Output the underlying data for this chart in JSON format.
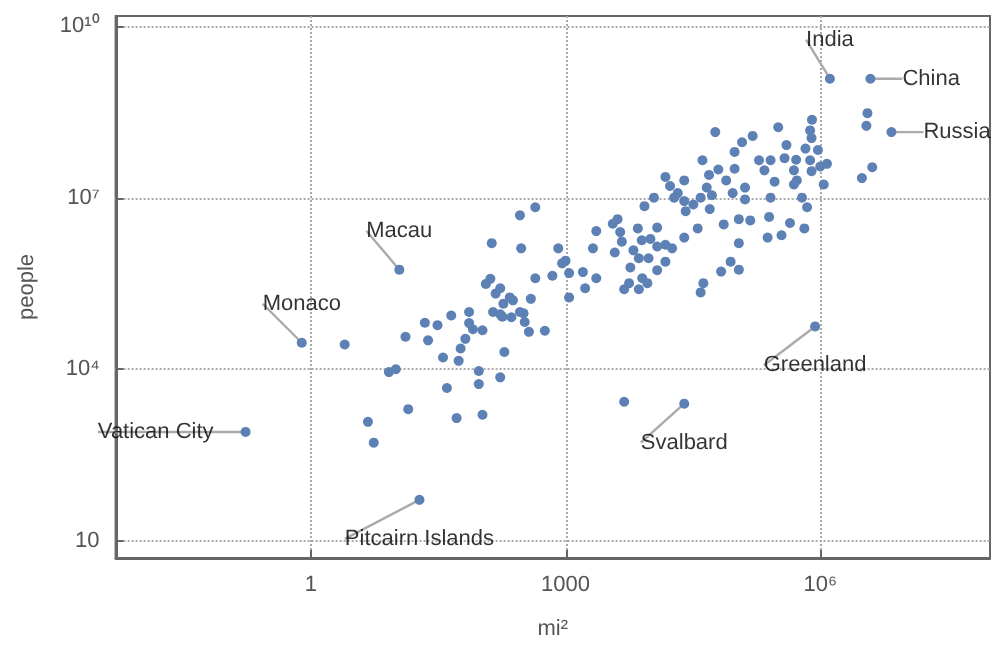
{
  "chart_data": {
    "type": "scatter",
    "xlabel": "mi²",
    "ylabel": "people",
    "log": "xy",
    "grid": true,
    "marker": "circle",
    "color": "#5e81b5",
    "xlim": [
      0.005,
      100000000
    ],
    "ylim": [
      5,
      15000000000
    ],
    "xticks": [
      1,
      1000,
      {
        "value": 1000000,
        "label": "10⁶"
      }
    ],
    "yticks": [
      10,
      {
        "value": 10000,
        "label": "10⁴"
      },
      {
        "value": 10000000,
        "label": "10⁷"
      },
      {
        "value": 10000000000,
        "label": "10¹⁰"
      }
    ],
    "x": [
      0.17,
      0.78,
      11,
      19,
      1300000,
      3900000,
      6900000,
      870000,
      25000,
      2.5,
      13,
      22,
      24,
      31,
      45,
      73,
      73,
      81,
      105,
      66,
      58,
      36,
      55,
      8.3,
      10,
      40,
      95,
      95,
      14,
      52,
      105,
      4.7,
      5.5,
      135,
      115,
      130,
      150,
      170,
      140,
      170,
      180,
      185,
      190,
      170,
      220,
      240,
      230,
      290,
      300,
      290,
      440,
      320,
      330,
      370,
      390,
      440,
      570,
      700,
      820,
      910,
      1000,
      1100,
      1100,
      1600,
      1700,
      2100,
      2300,
      2300,
      3600,
      4100,
      4400,
      4600,
      3800,
      4900,
      4900,
      58000,
      41000,
      7100,
      8500,
      12000,
      10000,
      7900,
      6300,
      7300,
      9500,
      12000,
      15000,
      18000,
      15000,
      12000,
      5800,
      8000,
      5600,
      9200,
      7300,
      11000,
      15000,
      17000,
      25000,
      19000,
      25000,
      26000,
      25000,
      36000,
      46000,
      49000,
      63000,
      78000,
      98000,
      98000,
      120000,
      160000,
      190000,
      220000,
      260000,
      320000,
      400000,
      490000,
      490000,
      790000,
      940000,
      1000000,
      700000,
      440000,
      240000,
      350000,
      650000,
      150000,
      110000,
      130000,
      73000,
      130000,
      93000,
      53000,
      39000,
      32000,
      50000,
      110000,
      88000,
      110000,
      68000,
      42000,
      39000,
      21000,
      800000,
      760000,
      670000,
      380000,
      520000,
      760000,
      1200000,
      790000,
      530000,
      290000,
      1100000,
      610000,
      260000,
      250000,
      3600000,
      3500000,
      4100000,
      3100000
    ],
    "values": [
      800,
      29000,
      550000,
      52,
      1200000000,
      1200000000,
      140000000,
      56000,
      2500,
      27000,
      37000,
      65000,
      32000,
      59000,
      87000,
      100000,
      64000,
      50000,
      48000,
      34000,
      23000,
      16000,
      14000,
      8900,
      10000,
      4700,
      9300,
      5500,
      2000,
      1400,
      1600,
      1200,
      520,
      1600000,
      310000,
      380000,
      210000,
      260000,
      100000,
      91000,
      83000,
      140000,
      20000,
      7200,
      180000,
      160000,
      81000,
      100000,
      1300000,
      4900000,
      6800000,
      95000,
      67000,
      45000,
      170000,
      390000,
      47000,
      430000,
      1300000,
      710000,
      790000,
      480000,
      180000,
      500000,
      260000,
      1300000,
      390000,
      2600000,
      3500000,
      4200000,
      2500000,
      1700000,
      1100000,
      250000,
      2700,
      140000000,
      45000000,
      2900000,
      7100000,
      3000000,
      1900000,
      1800000,
      1200000,
      870000,
      870000,
      1400000,
      1500000,
      1300000,
      760000,
      540000,
      600000,
      390000,
      320000,
      320000,
      250000,
      10000000,
      23000000,
      16000000,
      20000000,
      10000000,
      8700000,
      5800000,
      2000000,
      2900000,
      15000000,
      25000000,
      31000000,
      20000000,
      32000000,
      63000000,
      93000000,
      120000000,
      45000000,
      30000000,
      45000000,
      170000000,
      83000000,
      30000000,
      17000000,
      110000000,
      68000000,
      35000000,
      6800000,
      3600000,
      2000000,
      2200000,
      2900000,
      4000000,
      4200000,
      15000000,
      3400000,
      9300000,
      12000000,
      11000000,
      10000000,
      7600000,
      6300000,
      1600000,
      760000,
      550000,
      510000,
      320000,
      220000,
      12000000,
      230000000,
      150000000,
      72000000,
      49000000,
      46000000,
      45000000,
      39000000,
      29000000,
      20000000,
      19000000,
      17000000,
      10000000,
      10000000,
      4600000,
      300000000,
      180000000,
      34000000,
      22000000
    ],
    "annotations": [
      {
        "text": "Vatican City",
        "x": 0.17,
        "y": 800
      },
      {
        "text": "Monaco",
        "x": 0.78,
        "y": 29000
      },
      {
        "text": "Macau",
        "x": 11,
        "y": 550000
      },
      {
        "text": "Pitcairn Islands",
        "x": 19,
        "y": 52
      },
      {
        "text": "India",
        "x": 1300000,
        "y": 1200000000
      },
      {
        "text": "China",
        "x": 3900000,
        "y": 1200000000
      },
      {
        "text": "Russia",
        "x": 6900000,
        "y": 140000000
      },
      {
        "text": "Greenland",
        "x": 870000,
        "y": 56000
      },
      {
        "text": "Svalbard",
        "x": 25000,
        "y": 2500
      }
    ]
  }
}
